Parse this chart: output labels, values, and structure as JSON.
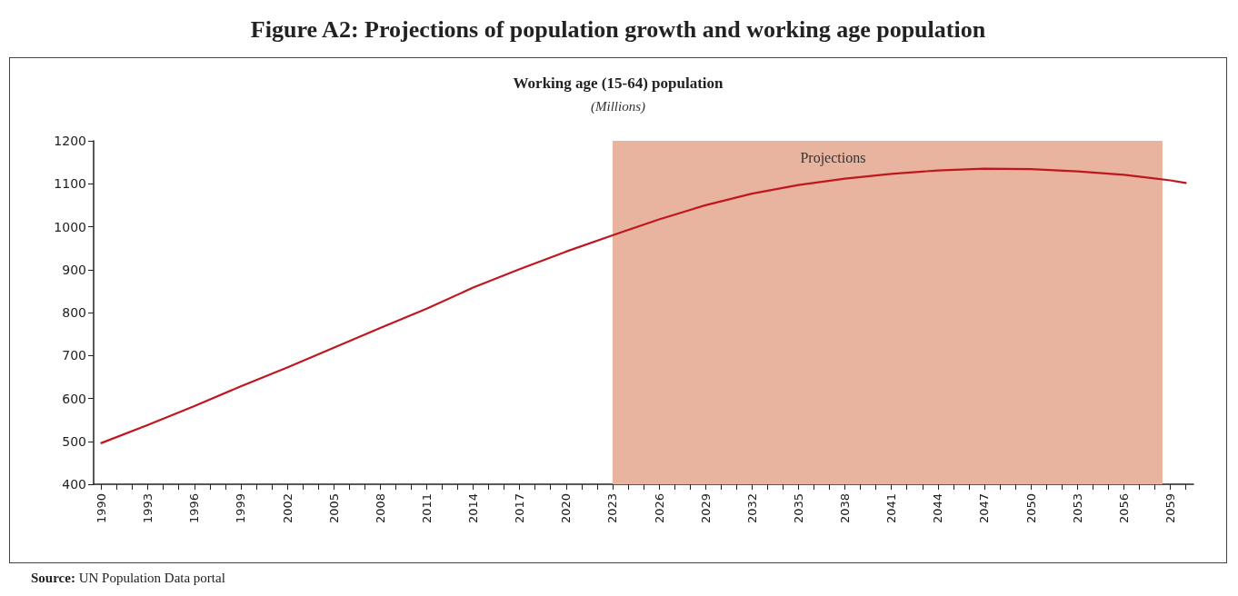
{
  "chart_data": {
    "type": "line",
    "title": "Figure A2: Projections of population growth and working age population",
    "subtitle": "Working age (15-64) population",
    "ylabel": "(Millions)",
    "x": [
      1990,
      1993,
      1996,
      1999,
      2002,
      2005,
      2008,
      2011,
      2014,
      2017,
      2020,
      2023,
      2026,
      2029,
      2032,
      2035,
      2038,
      2041,
      2044,
      2047,
      2050,
      2053,
      2056,
      2059,
      2060
    ],
    "series": [
      {
        "color": "#c0171f",
        "values": [
          496,
          538,
          582,
          628,
          672,
          718,
          764,
          809,
          858,
          901,
          942,
          980,
          1017,
          1050,
          1077,
          1097,
          1112,
          1123,
          1131,
          1135,
          1134,
          1129,
          1121,
          1108,
          1102
        ]
      }
    ],
    "xlim": [
      1989.5,
      2060.5
    ],
    "xticks": [
      1990,
      {
        "value": 1991,
        "label": null
      },
      {
        "value": 1992,
        "label": null
      },
      1993,
      {
        "value": 1994,
        "label": null
      },
      {
        "value": 1995,
        "label": null
      },
      1996,
      {
        "value": 1997,
        "label": null
      },
      {
        "value": 1998,
        "label": null
      },
      1999,
      {
        "value": 2000,
        "label": null
      },
      {
        "value": 2001,
        "label": null
      },
      2002,
      {
        "value": 2003,
        "label": null
      },
      {
        "value": 2004,
        "label": null
      },
      2005,
      {
        "value": 2006,
        "label": null
      },
      {
        "value": 2007,
        "label": null
      },
      2008,
      {
        "value": 2009,
        "label": null
      },
      {
        "value": 2010,
        "label": null
      },
      2011,
      {
        "value": 2012,
        "label": null
      },
      {
        "value": 2013,
        "label": null
      },
      2014,
      {
        "value": 2015,
        "label": null
      },
      {
        "value": 2016,
        "label": null
      },
      2017,
      {
        "value": 2018,
        "label": null
      },
      {
        "value": 2019,
        "label": null
      },
      2020,
      {
        "value": 2021,
        "label": null
      },
      {
        "value": 2022,
        "label": null
      },
      2023,
      {
        "value": 2024,
        "label": null
      },
      {
        "value": 2025,
        "label": null
      },
      2026,
      {
        "value": 2027,
        "label": null
      },
      {
        "value": 2028,
        "label": null
      },
      2029,
      {
        "value": 2030,
        "label": null
      },
      {
        "value": 2031,
        "label": null
      },
      2032,
      {
        "value": 2033,
        "label": null
      },
      {
        "value": 2034,
        "label": null
      },
      2035,
      {
        "value": 2036,
        "label": null
      },
      {
        "value": 2037,
        "label": null
      },
      2038,
      {
        "value": 2039,
        "label": null
      },
      {
        "value": 2040,
        "label": null
      },
      2041,
      {
        "value": 2042,
        "label": null
      },
      {
        "value": 2043,
        "label": null
      },
      2044,
      {
        "value": 2045,
        "label": null
      },
      {
        "value": 2046,
        "label": null
      },
      2047,
      {
        "value": 2048,
        "label": null
      },
      {
        "value": 2049,
        "label": null
      },
      2050,
      {
        "value": 2051,
        "label": null
      },
      {
        "value": 2052,
        "label": null
      },
      2053,
      {
        "value": 2054,
        "label": null
      },
      {
        "value": 2055,
        "label": null
      },
      2056,
      {
        "value": 2057,
        "label": null
      },
      {
        "value": 2058,
        "label": null
      },
      2059,
      {
        "value": 2060,
        "label": null
      }
    ],
    "ylim": [
      400,
      1200
    ],
    "yticks": [
      400,
      500,
      600,
      700,
      800,
      900,
      1000,
      1100,
      1200
    ],
    "bands": [
      {
        "axis": "x",
        "from": 2023,
        "to": 2058.5,
        "label": "Projections",
        "color": "#e8b4a0"
      }
    ],
    "grid": false,
    "marker": "none",
    "line_style": "solid",
    "annotations": [
      "Source: UN Population Data portal"
    ]
  }
}
